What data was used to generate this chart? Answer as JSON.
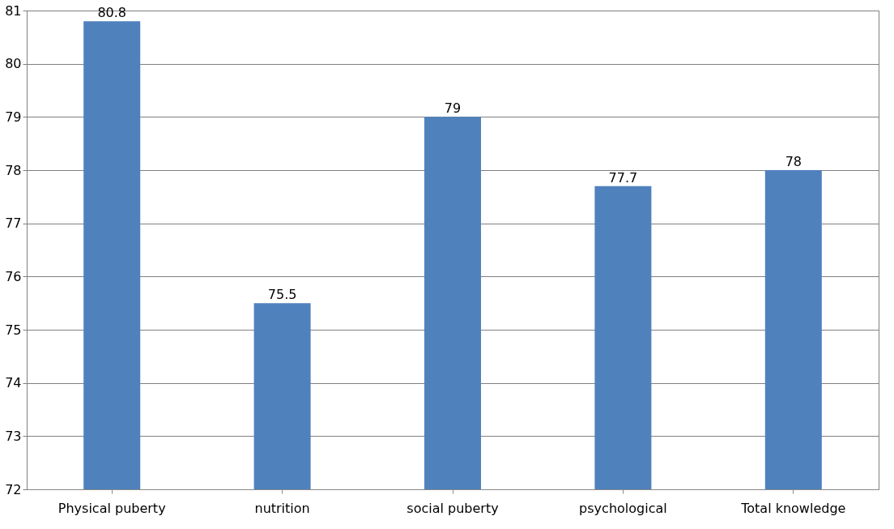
{
  "chart_data": {
    "type": "bar",
    "categories": [
      "Physical puberty",
      "nutrition",
      "social puberty",
      "psychological",
      "Total knowledge"
    ],
    "values": [
      80.8,
      75.5,
      79,
      77.7,
      78
    ],
    "color": "#4f81bd",
    "ylim": [
      72,
      81
    ],
    "yticks": [
      72,
      73,
      74,
      75,
      76,
      77,
      78,
      79,
      80,
      81
    ],
    "grid": "y",
    "data_labels": true
  }
}
